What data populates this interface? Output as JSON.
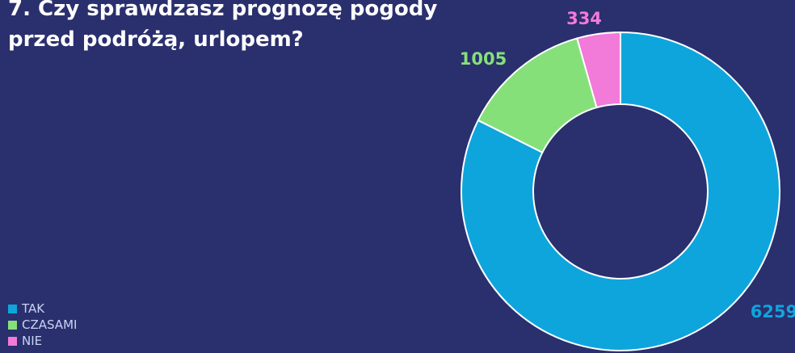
{
  "chart_data": {
    "type": "pie",
    "title": "7. Czy sprawdzasz prognozę pogody przed podróżą, urlopem?",
    "categories": [
      "TAK",
      "CZASAMI",
      "NIE"
    ],
    "values": [
      6259,
      1005,
      334
    ],
    "colors": [
      "#0ea5dd",
      "#86e07a",
      "#f27ad8"
    ],
    "donut": true,
    "legend_position": "bottom-left",
    "data_labels": [
      "6259",
      "1005",
      "334"
    ]
  }
}
